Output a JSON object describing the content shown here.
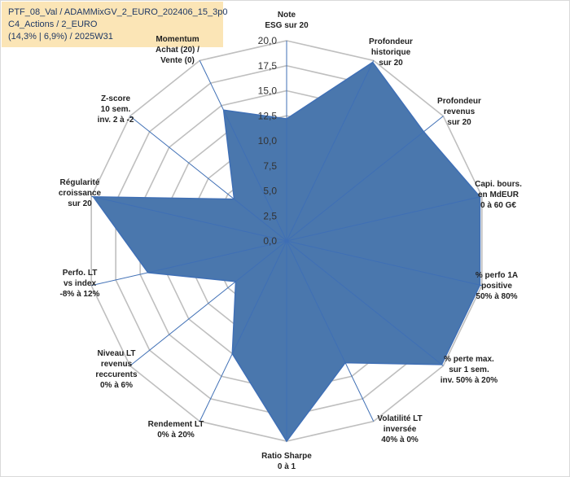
{
  "header": {
    "line1": "PTF_08_Val / ADAMMixGV_2_EURO_202406_15_3p0",
    "line2": "C4_Actions / 2_EURO",
    "line3": "(14,3% | 6,9%) / 2025W31"
  },
  "chart_data": {
    "type": "radar",
    "rlim": [
      0,
      20
    ],
    "grid": true,
    "tick_labels": [
      "0,0",
      "2,5",
      "5,0",
      "7,5",
      "10,0",
      "12,5",
      "15,0",
      "17,5",
      "20,0"
    ],
    "categories": [
      [
        "Note",
        "ESG sur 20"
      ],
      [
        "Profondeur",
        "historique",
        "sur 20"
      ],
      [
        "Profondeur",
        "revenus",
        "sur 20"
      ],
      [
        "Capi. bours.",
        "en MdEUR",
        "0 à 60 G€"
      ],
      [
        "% perfo 1A",
        "positive",
        "50% à 80%"
      ],
      [
        "% perte max.",
        "sur 1 sem.",
        "inv. 50% à 20%"
      ],
      [
        "Volatilité LT",
        "inversée",
        "40% à 0%"
      ],
      [
        "Ratio Sharpe",
        "0 à 1"
      ],
      [
        "Rendement LT",
        "0% à 20%"
      ],
      [
        "Niveau LT",
        "revenus",
        "reccurents",
        "0% à 6%"
      ],
      [
        "Perfo. LT",
        "vs index",
        "-8% à 12%"
      ],
      [
        "Régularité",
        "croissance",
        "sur 20"
      ],
      [
        "Z-score",
        "10 sem.",
        "inv. 2 à -2"
      ],
      [
        "Momentum",
        "Achat (20) /",
        "Vente (0)"
      ]
    ],
    "values": [
      12.2,
      19.8,
      17.5,
      19.8,
      19.8,
      19.8,
      13.5,
      20.0,
      12.5,
      6.5,
      14.2,
      19.8,
      6.7,
      14.5
    ],
    "colors": {
      "fill": "#4a77ad",
      "line": "#3f6fb5",
      "grid": "#bfbfbf"
    }
  }
}
